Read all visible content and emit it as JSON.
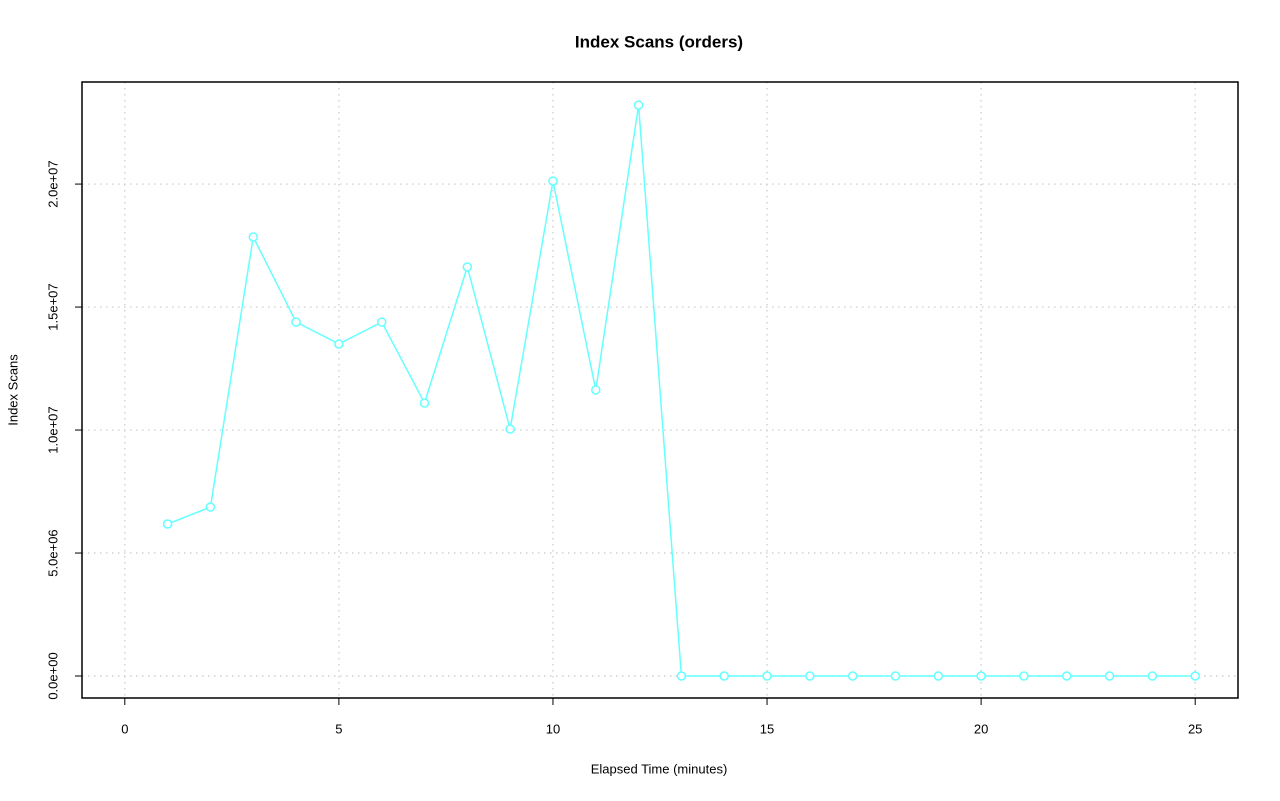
{
  "chart_data": {
    "type": "line",
    "title": "Index Scans (orders)",
    "x_label": "Elapsed Time (minutes)",
    "y_label": "Index Scans",
    "x": [
      1,
      2,
      3,
      4,
      5,
      6,
      7,
      8,
      9,
      10,
      11,
      12,
      13,
      14,
      15,
      16,
      17,
      18,
      19,
      20,
      21,
      22,
      23,
      24,
      25
    ],
    "values": [
      6180000,
      6870000,
      17850000,
      14390000,
      13500000,
      14390000,
      11100000,
      16630000,
      10040000,
      20120000,
      11630000,
      23210000,
      0,
      0,
      0,
      0,
      0,
      0,
      0,
      0,
      0,
      0,
      0,
      0,
      0
    ],
    "color": "#66ffff",
    "xlim": [
      -1,
      26
    ],
    "xticks": [
      0,
      5,
      10,
      15,
      20,
      25
    ],
    "ylim": [
      -894000,
      24150000
    ],
    "yticks": [
      {
        "value": 0,
        "label": "0.0e+00"
      },
      {
        "value": 5000000,
        "label": "5.0e+06"
      },
      {
        "value": 10000000,
        "label": "1.0e+07"
      },
      {
        "value": 15000000,
        "label": "1.5e+07"
      },
      {
        "value": 20000000,
        "label": "2.0e+07"
      }
    ],
    "grid": true
  }
}
